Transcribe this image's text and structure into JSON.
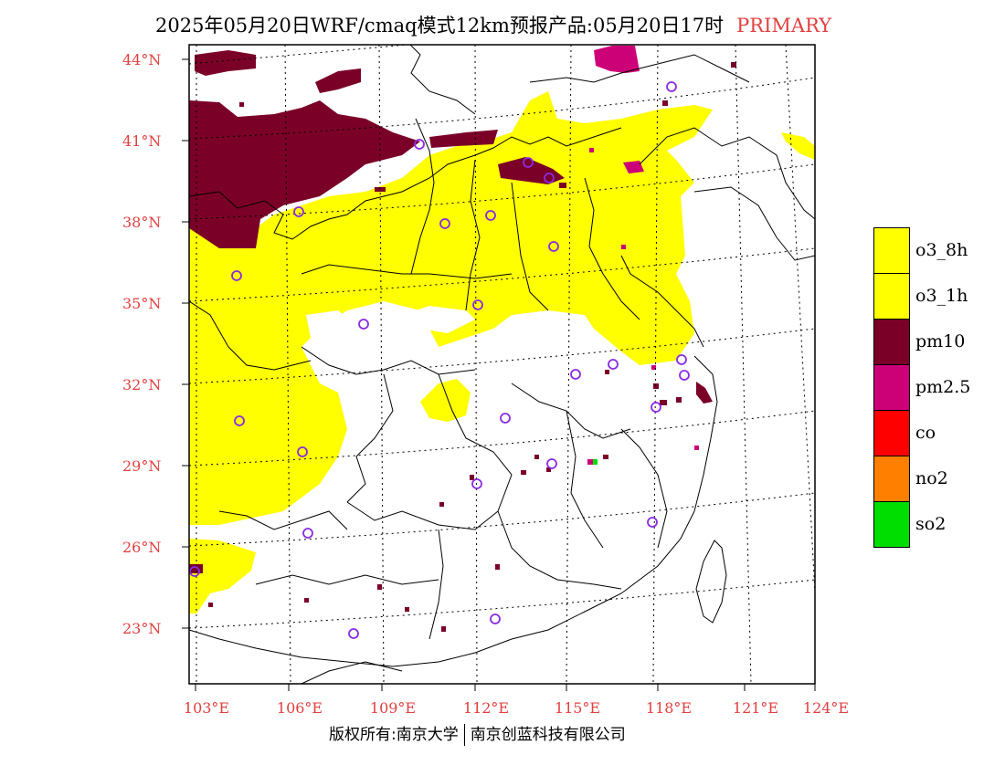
{
  "title": {
    "main": "2025年05月20日WRF/cmaq模式12km预报产品:05月20日17时",
    "tag": "PRIMARY"
  },
  "lat_labels": [
    "44°N",
    "41°N",
    "38°N",
    "35°N",
    "32°N",
    "29°N",
    "26°N",
    "23°N"
  ],
  "lon_labels": [
    "103°E",
    "106°E",
    "109°E",
    "112°E",
    "115°E",
    "118°E",
    "121°E",
    "124°E"
  ],
  "legend": [
    {
      "label": "o3_8h",
      "color": "#ffff00"
    },
    {
      "label": "o3_1h",
      "color": "#ffff00"
    },
    {
      "label": "pm10",
      "color": "#7a0028"
    },
    {
      "label": "pm2.5",
      "color": "#cc0077"
    },
    {
      "label": "co",
      "color": "#ff0000"
    },
    {
      "label": "no2",
      "color": "#ff7f00"
    },
    {
      "label": "so2",
      "color": "#00dd00"
    }
  ],
  "footer": {
    "left": "版权所有:南京大学",
    "right": "南京创蓝科技有限公司"
  },
  "colors": {
    "o3": "#ffff00",
    "pm10": "#7a0028",
    "pm25": "#cc0077",
    "so2": "#00dd00",
    "station": "#8a2be2",
    "axis_label": "#e04040"
  }
}
